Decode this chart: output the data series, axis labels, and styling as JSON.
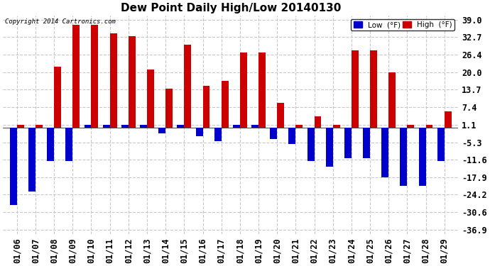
{
  "title": "Dew Point Daily High/Low 20140130",
  "copyright": "Copyright 2014 Cartronics.com",
  "dates": [
    "01/06",
    "01/07",
    "01/08",
    "01/09",
    "01/10",
    "01/11",
    "01/12",
    "01/13",
    "01/14",
    "01/15",
    "01/16",
    "01/17",
    "01/18",
    "01/19",
    "01/20",
    "01/21",
    "01/22",
    "01/23",
    "01/24",
    "01/25",
    "01/26",
    "01/27",
    "01/28",
    "01/29"
  ],
  "high": [
    1.1,
    1.1,
    22.0,
    37.0,
    37.0,
    34.0,
    33.0,
    21.0,
    14.0,
    30.0,
    15.0,
    17.0,
    27.0,
    27.0,
    9.0,
    1.1,
    4.0,
    1.1,
    28.0,
    28.0,
    20.0,
    1.1,
    1.1,
    6.0
  ],
  "low": [
    -28.0,
    -23.0,
    -12.0,
    -12.0,
    1.1,
    1.1,
    1.1,
    1.1,
    -2.0,
    1.1,
    -3.0,
    -5.0,
    1.1,
    1.1,
    -4.0,
    -6.0,
    -12.0,
    -14.0,
    -11.0,
    -11.0,
    -18.0,
    -21.0,
    -21.0,
    -12.0
  ],
  "high_color": "#cc0000",
  "low_color": "#0000cc",
  "background_color": "#ffffff",
  "grid_color": "#c8c8c8",
  "yticks": [
    39.0,
    32.7,
    26.4,
    20.0,
    13.7,
    7.4,
    1.1,
    -5.3,
    -11.6,
    -17.9,
    -24.2,
    -30.6,
    -36.9
  ],
  "ylim": [
    -38.5,
    40.5
  ],
  "bar_width": 0.38,
  "title_fontsize": 11,
  "tick_fontsize": 8.5,
  "legend_label_low": "Low  (°F)",
  "legend_label_high": "High  (°F)"
}
